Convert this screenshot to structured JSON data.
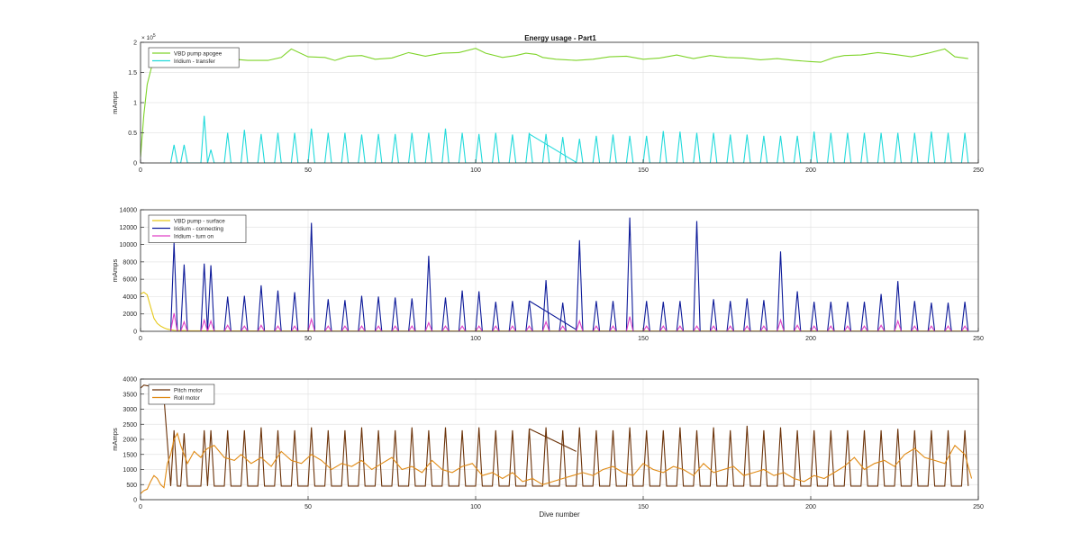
{
  "figure": {
    "title": "Energy usage - Part1"
  },
  "chart_data": [
    {
      "type": "line",
      "title": "Energy usage - Part1",
      "xlabel": "",
      "ylabel": "mAmps",
      "xlim": [
        0,
        250
      ],
      "ylim": [
        0,
        200000
      ],
      "xticks": [
        0,
        50,
        100,
        150,
        200,
        250
      ],
      "xtick_labels": [
        "0",
        "50",
        "100",
        "150",
        "200",
        "250"
      ],
      "yticks": [
        0,
        50000,
        100000,
        150000,
        200000
      ],
      "ytick_labels": [
        "0",
        "0.5",
        "1",
        "1.5",
        "2"
      ],
      "exponent_label": "× 10^5",
      "grid": true,
      "legend_position": "top-left",
      "series": [
        {
          "name": "VBD pump apogee",
          "color": "#7fd42a",
          "kind": "smooth",
          "x": [
            0,
            1,
            2,
            4,
            6,
            10,
            20,
            25,
            28,
            32,
            38,
            42,
            45,
            50,
            55,
            58,
            62,
            66,
            70,
            75,
            80,
            85,
            90,
            95,
            100,
            103,
            108,
            112,
            115,
            118,
            120,
            124,
            127,
            130,
            135,
            140,
            145,
            150,
            155,
            160,
            165,
            170,
            175,
            180,
            185,
            190,
            195,
            200,
            203,
            207,
            210,
            215,
            220,
            225,
            230,
            235,
            240,
            243,
            247
          ],
          "values": [
            10000,
            80000,
            130000,
            175000,
            182000,
            186000,
            188000,
            186000,
            172000,
            170000,
            170000,
            175000,
            189000,
            176000,
            175000,
            170000,
            177000,
            178000,
            172000,
            174000,
            183000,
            177000,
            182000,
            183000,
            190000,
            182000,
            175000,
            178000,
            182000,
            180000,
            175000,
            172000,
            171000,
            170000,
            172000,
            176000,
            177000,
            172000,
            174000,
            179000,
            173000,
            178000,
            175000,
            174000,
            171000,
            173000,
            170000,
            168000,
            167000,
            175000,
            178000,
            179000,
            183000,
            180000,
            176000,
            182000,
            189000,
            176000,
            173000
          ]
        },
        {
          "name": "Iridium - transfer",
          "color": "#22dadb",
          "kind": "spikes",
          "spike_positions": [
            10,
            13,
            19,
            21,
            26,
            31,
            36,
            41,
            46,
            51,
            56,
            61,
            66,
            71,
            76,
            81,
            86,
            91,
            96,
            101,
            106,
            111,
            116,
            121,
            126,
            131,
            136,
            141,
            146,
            151,
            156,
            161,
            166,
            171,
            176,
            181,
            186,
            191,
            196,
            201,
            206,
            211,
            216,
            221,
            226,
            231,
            236,
            241,
            246
          ],
          "spike_values": [
            30000,
            30000,
            78000,
            22000,
            50000,
            55000,
            48000,
            50000,
            50000,
            57000,
            50000,
            50000,
            47000,
            48000,
            48000,
            50000,
            50000,
            57000,
            50000,
            48000,
            50000,
            47000,
            50000,
            48000,
            43000,
            40000,
            45000,
            47000,
            45000,
            45000,
            53000,
            52000,
            50000,
            50000,
            47000,
            47000,
            45000,
            45000,
            45000,
            52000,
            50000,
            50000,
            50000,
            50000,
            50000,
            50000,
            52000,
            50000,
            50000
          ],
          "artifact": {
            "from": [
              116,
              48000
            ],
            "to": [
              130,
              1000
            ]
          }
        }
      ]
    },
    {
      "type": "line",
      "title": "",
      "xlabel": "",
      "ylabel": "mAmps",
      "xlim": [
        0,
        250
      ],
      "ylim": [
        0,
        14000
      ],
      "xticks": [
        0,
        50,
        100,
        150,
        200,
        250
      ],
      "xtick_labels": [
        "0",
        "50",
        "100",
        "150",
        "200",
        "250"
      ],
      "yticks": [
        0,
        2000,
        4000,
        6000,
        8000,
        10000,
        12000,
        14000
      ],
      "ytick_labels": [
        "0",
        "2000",
        "4000",
        "6000",
        "8000",
        "10000",
        "12000",
        "14000"
      ],
      "grid": true,
      "legend_position": "top-left",
      "series": [
        {
          "name": "VBD pump - surface",
          "color": "#e6c817",
          "kind": "smooth",
          "x": [
            0,
            1,
            2,
            3,
            4,
            5,
            6,
            7,
            8,
            10,
            15,
            30,
            60,
            100,
            130,
            160,
            200,
            247
          ],
          "values": [
            4300,
            4500,
            4200,
            2800,
            1500,
            900,
            600,
            400,
            250,
            100,
            60,
            40,
            30,
            30,
            30,
            30,
            30,
            30
          ]
        },
        {
          "name": "Iridium - connecting",
          "color": "#0d1a99",
          "kind": "spikes",
          "spike_positions": [
            10,
            13,
            19,
            21,
            26,
            31,
            36,
            41,
            46,
            51,
            56,
            61,
            66,
            71,
            76,
            81,
            86,
            91,
            96,
            101,
            106,
            111,
            116,
            121,
            126,
            131,
            136,
            141,
            146,
            151,
            156,
            161,
            166,
            171,
            176,
            181,
            186,
            191,
            196,
            201,
            206,
            211,
            216,
            221,
            226,
            231,
            236,
            241,
            246
          ],
          "spike_values": [
            10200,
            7700,
            7800,
            7600,
            4000,
            4100,
            5300,
            4700,
            4500,
            12500,
            3700,
            3600,
            4100,
            4000,
            3900,
            3800,
            8700,
            3900,
            4700,
            4600,
            3400,
            3500,
            3500,
            5900,
            3300,
            10500,
            3500,
            3500,
            13100,
            3500,
            3400,
            3500,
            12700,
            3700,
            3500,
            3800,
            3600,
            9200,
            4600,
            3400,
            3400,
            3400,
            3400,
            4300,
            5800,
            3500,
            3300,
            3300,
            3400
          ],
          "artifact": {
            "from": [
              116,
              3500
            ],
            "to": [
              130,
              200
            ]
          }
        },
        {
          "name": "Iridium - turn on",
          "color": "#e040c8",
          "kind": "spikes",
          "spike_positions": [
            10,
            13,
            19,
            21,
            26,
            31,
            36,
            41,
            46,
            51,
            56,
            61,
            66,
            71,
            76,
            81,
            86,
            91,
            96,
            101,
            106,
            111,
            116,
            121,
            126,
            131,
            136,
            141,
            146,
            151,
            156,
            161,
            166,
            171,
            176,
            181,
            186,
            191,
            196,
            201,
            206,
            211,
            216,
            221,
            226,
            231,
            236,
            241,
            246
          ],
          "spike_values": [
            2100,
            1100,
            1300,
            1200,
            700,
            600,
            700,
            600,
            600,
            1400,
            600,
            600,
            600,
            600,
            600,
            600,
            1000,
            600,
            600,
            600,
            600,
            600,
            600,
            1100,
            600,
            1200,
            600,
            600,
            1700,
            600,
            600,
            600,
            600,
            600,
            600,
            600,
            600,
            1300,
            700,
            600,
            600,
            600,
            600,
            700,
            1200,
            600,
            600,
            600,
            600
          ]
        }
      ]
    },
    {
      "type": "line",
      "title": "",
      "xlabel": "Dive number",
      "ylabel": "mAmps",
      "xlim": [
        0,
        250
      ],
      "ylim": [
        0,
        4000
      ],
      "xticks": [
        0,
        50,
        100,
        150,
        200,
        250
      ],
      "xtick_labels": [
        "0",
        "50",
        "100",
        "150",
        "200",
        "250"
      ],
      "yticks": [
        0,
        500,
        1000,
        1500,
        2000,
        2500,
        3000,
        3500,
        4000
      ],
      "ytick_labels": [
        "0",
        "500",
        "1000",
        "1500",
        "2000",
        "2500",
        "3000",
        "3500",
        "4000"
      ],
      "grid": true,
      "legend_position": "top-left",
      "series": [
        {
          "name": "Pitch motor",
          "color": "#6b3208",
          "kind": "spikes",
          "base": 450,
          "start": {
            "x": [
              0,
              1,
              2,
              3,
              4,
              5,
              6,
              7
            ],
            "values": [
              3700,
              3800,
              3780,
              3750,
              3700,
              3600,
              3500,
              3400
            ]
          },
          "spike_positions": [
            10,
            13,
            19,
            21,
            26,
            31,
            36,
            41,
            46,
            51,
            56,
            61,
            66,
            71,
            76,
            81,
            86,
            91,
            96,
            101,
            106,
            111,
            116,
            121,
            126,
            131,
            136,
            141,
            146,
            151,
            156,
            161,
            166,
            171,
            176,
            181,
            186,
            191,
            196,
            201,
            206,
            211,
            216,
            221,
            226,
            231,
            236,
            241,
            246
          ],
          "spike_values": [
            2300,
            2200,
            2300,
            2300,
            2300,
            2300,
            2400,
            2300,
            2300,
            2400,
            2300,
            2300,
            2400,
            2300,
            2300,
            2400,
            2300,
            2400,
            2300,
            2400,
            2300,
            2300,
            2350,
            2400,
            2300,
            2400,
            2300,
            2300,
            2400,
            2300,
            2300,
            2400,
            2300,
            2400,
            2300,
            2450,
            2300,
            2400,
            2300,
            2300,
            2300,
            2300,
            2300,
            2300,
            2350,
            2300,
            2300,
            2300,
            2300
          ],
          "artifact": {
            "from": [
              116,
              2350
            ],
            "to": [
              130,
              1600
            ]
          }
        },
        {
          "name": "Roll motor",
          "color": "#e08a14",
          "kind": "noisy",
          "x": [
            0,
            1,
            2,
            3,
            4,
            5,
            6,
            7,
            8,
            9,
            10,
            11,
            12,
            13,
            14,
            15,
            16,
            17,
            18,
            19,
            20,
            22,
            25,
            28,
            30,
            33,
            36,
            39,
            42,
            45,
            48,
            51,
            54,
            57,
            60,
            63,
            66,
            69,
            72,
            75,
            78,
            81,
            84,
            87,
            90,
            93,
            96,
            99,
            102,
            105,
            108,
            111,
            114,
            117,
            120,
            123,
            126,
            129,
            132,
            135,
            138,
            141,
            144,
            147,
            150,
            153,
            156,
            159,
            162,
            165,
            168,
            171,
            174,
            177,
            180,
            183,
            186,
            189,
            192,
            195,
            198,
            201,
            204,
            207,
            210,
            213,
            216,
            219,
            222,
            225,
            228,
            231,
            234,
            237,
            240,
            243,
            246,
            248
          ],
          "values": [
            200,
            300,
            350,
            600,
            800,
            700,
            500,
            400,
            1200,
            1500,
            2000,
            2200,
            1800,
            1500,
            1200,
            1400,
            1600,
            1500,
            1400,
            1600,
            1700,
            1800,
            1400,
            1300,
            1500,
            1200,
            1400,
            1100,
            1600,
            1300,
            1200,
            1500,
            1300,
            1000,
            1200,
            1100,
            1300,
            1000,
            1200,
            1400,
            1000,
            1100,
            900,
            1300,
            1000,
            900,
            1100,
            1200,
            800,
            900,
            700,
            900,
            600,
            700,
            500,
            600,
            700,
            800,
            900,
            800,
            1000,
            1100,
            900,
            800,
            1200,
            1000,
            900,
            1100,
            1000,
            800,
            1200,
            900,
            1000,
            1100,
            800,
            900,
            1000,
            800,
            900,
            700,
            600,
            800,
            700,
            900,
            1100,
            1400,
            1000,
            1200,
            1300,
            1100,
            1500,
            1700,
            1400,
            1300,
            1200,
            1800,
            1500,
            700
          ]
        }
      ]
    }
  ]
}
